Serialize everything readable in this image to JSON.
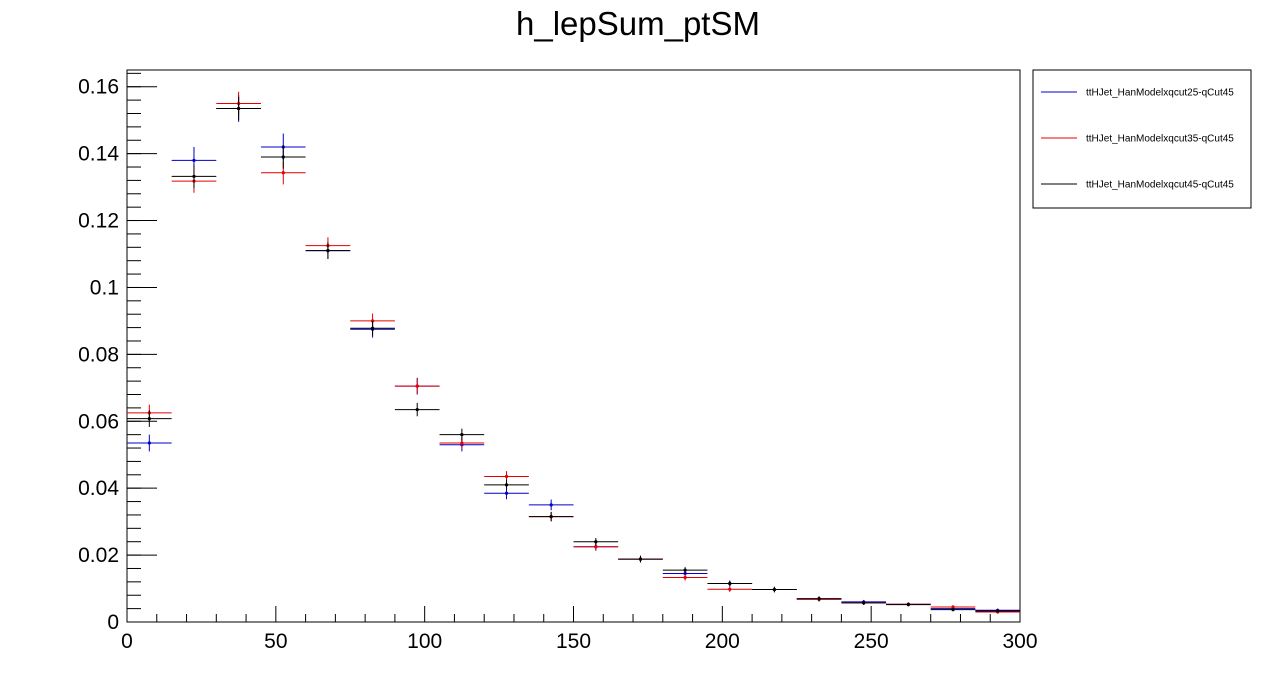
{
  "chart_data": {
    "type": "scatter",
    "title": "h_lepSum_ptSM",
    "xlabel": "",
    "ylabel": "",
    "xlim": [
      0,
      300
    ],
    "ylim": [
      0,
      0.165
    ],
    "bin_width": 15,
    "x_ticks": [
      {
        "value": 0,
        "label": "0"
      },
      {
        "value": 50,
        "label": "50"
      },
      {
        "value": 100,
        "label": "100"
      },
      {
        "value": 150,
        "label": "150"
      },
      {
        "value": 200,
        "label": "200"
      },
      {
        "value": 250,
        "label": "250"
      },
      {
        "value": 300,
        "label": "300"
      }
    ],
    "y_ticks": [
      {
        "value": 0,
        "label": "0"
      },
      {
        "value": 0.02,
        "label": "0.02"
      },
      {
        "value": 0.04,
        "label": "0.04"
      },
      {
        "value": 0.06,
        "label": "0.06"
      },
      {
        "value": 0.08,
        "label": "0.08"
      },
      {
        "value": 0.1,
        "label": "0.1"
      },
      {
        "value": 0.12,
        "label": "0.12"
      },
      {
        "value": 0.14,
        "label": "0.14"
      },
      {
        "value": 0.16,
        "label": "0.16"
      }
    ],
    "x": [
      7.5,
      22.5,
      37.5,
      52.5,
      67.5,
      82.5,
      97.5,
      112.5,
      127.5,
      142.5,
      157.5,
      172.5,
      187.5,
      202.5,
      217.5,
      232.5,
      247.5,
      262.5,
      277.5,
      292.5
    ],
    "series": [
      {
        "name": "ttHJet_HanModelxqcut25-qCut45",
        "color": "#0000cc",
        "values": [
          0.0535,
          0.138,
          0.1535,
          0.142,
          0.111,
          0.0875,
          0.0705,
          0.053,
          0.0385,
          0.035,
          0.0225,
          0.0188,
          0.0145,
          0.0115,
          0.0097,
          0.0068,
          0.006,
          0.0053,
          0.004,
          0.0035
        ],
        "errors": [
          0.0025,
          0.004,
          0.004,
          0.004,
          0.0025,
          0.0025,
          0.0025,
          0.002,
          0.0018,
          0.0016,
          0.0012,
          0.001,
          0.001,
          0.0009,
          0.0008,
          0.0007,
          0.0006,
          0.0006,
          0.0005,
          0.0005
        ]
      },
      {
        "name": "ttHJet_HanModelxqcut35-qCut45",
        "color": "#e60000",
        "values": [
          0.0625,
          0.1318,
          0.155,
          0.1343,
          0.1125,
          0.09,
          0.0705,
          0.0535,
          0.0435,
          0.0315,
          0.0225,
          0.0188,
          0.0133,
          0.0098,
          0.0097,
          0.0068,
          0.0057,
          0.0053,
          0.0045,
          0.003
        ],
        "errors": [
          0.0025,
          0.0035,
          0.0035,
          0.0035,
          0.0025,
          0.0022,
          0.0022,
          0.0018,
          0.0016,
          0.0014,
          0.0011,
          0.001,
          0.0009,
          0.0008,
          0.0008,
          0.0007,
          0.0006,
          0.0005,
          0.0005,
          0.0004
        ]
      },
      {
        "name": "ttHJet_HanModelxqcut45-qCut45",
        "color": "#000000",
        "values": [
          0.0608,
          0.1332,
          0.1535,
          0.139,
          0.111,
          0.0878,
          0.0635,
          0.056,
          0.041,
          0.0315,
          0.024,
          0.0188,
          0.0155,
          0.0115,
          0.0097,
          0.007,
          0.0057,
          0.0052,
          0.0037,
          0.0033
        ],
        "errors": [
          0.0025,
          0.0035,
          0.0035,
          0.0035,
          0.0025,
          0.0022,
          0.002,
          0.0018,
          0.0016,
          0.0014,
          0.0011,
          0.001,
          0.0009,
          0.0008,
          0.0008,
          0.0007,
          0.0006,
          0.0005,
          0.0005,
          0.0004
        ]
      }
    ],
    "legend_placement": "top-right, outside plot",
    "grid": false
  }
}
